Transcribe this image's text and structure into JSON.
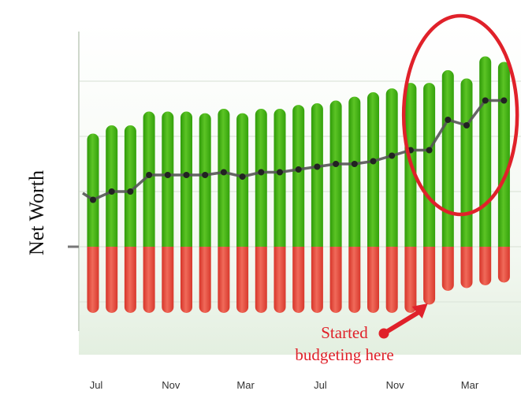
{
  "chart_data": {
    "type": "bar",
    "xlabel": "",
    "ylabel": "Net Worth",
    "tick_labels": [
      "Jul",
      "Nov",
      "Mar",
      "Jul",
      "Nov",
      "Mar"
    ],
    "tick_positions": [
      0,
      4,
      8,
      12,
      16,
      20
    ],
    "ylim": [
      -1.2,
      3.8
    ],
    "grid": true,
    "legend": "none",
    "months": 23,
    "series": [
      {
        "role": "assets",
        "color": "#3fae0e",
        "values": [
          2.05,
          2.2,
          2.2,
          2.45,
          2.45,
          2.45,
          2.42,
          2.5,
          2.42,
          2.5,
          2.5,
          2.57,
          2.6,
          2.65,
          2.72,
          2.8,
          2.87,
          2.97,
          2.97,
          3.2,
          3.05,
          3.45,
          3.35
        ]
      },
      {
        "role": "liabilities",
        "color": "#e3443a",
        "values": [
          -1.2,
          -1.2,
          -1.2,
          -1.2,
          -1.2,
          -1.2,
          -1.2,
          -1.2,
          -1.2,
          -1.2,
          -1.2,
          -1.2,
          -1.2,
          -1.2,
          -1.2,
          -1.2,
          -1.2,
          -1.2,
          -1.05,
          -0.8,
          -0.75,
          -0.7,
          -0.65
        ]
      },
      {
        "role": "net_worth_line",
        "color": "#555555",
        "values": [
          0.85,
          1.0,
          1.0,
          1.3,
          1.3,
          1.3,
          1.3,
          1.35,
          1.27,
          1.35,
          1.35,
          1.4,
          1.45,
          1.5,
          1.5,
          1.55,
          1.65,
          1.75,
          1.75,
          2.3,
          2.2,
          2.65,
          2.65
        ]
      }
    ],
    "annotation": {
      "lines": [
        "Started",
        "budgeting here"
      ],
      "color": "#e0212a",
      "target_index": 18,
      "highlight_range": [
        17,
        22
      ]
    }
  }
}
